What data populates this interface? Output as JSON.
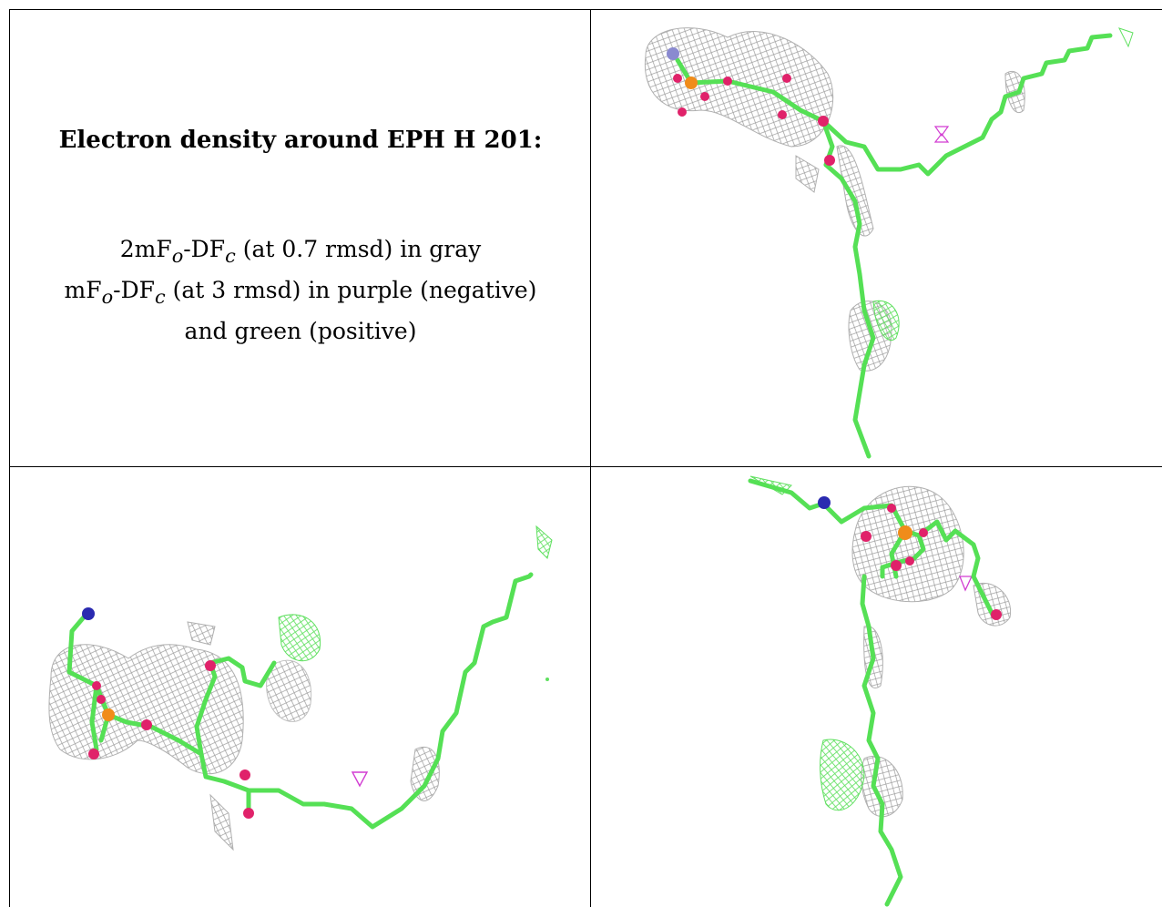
{
  "caption": {
    "title": "Electron density around EPH H 201:",
    "line1_pre": "2mF",
    "line1_sub1": "o",
    "line1_mid": "-DF",
    "line1_sub2": "c",
    "line1_post": " (at 0.7 rmsd) in gray",
    "line2_pre": "mF",
    "line2_sub1": "o",
    "line2_mid": "-DF",
    "line2_sub2": "c",
    "line2_post": " (at 3 rmsd) in purple (negative)",
    "line3": "and green (positive)"
  },
  "colors": {
    "carbon": "#55e055",
    "oxygen": "#e0226a",
    "phosphorus": "#f08c1a",
    "nitrogen": "#2a2ab0",
    "mesh_gray": "#9a9a9a",
    "mesh_green": "#5fe05f",
    "mesh_purple": "#d23cd2"
  },
  "panels": [
    "view-top-right",
    "view-bottom-left",
    "view-bottom-right"
  ]
}
